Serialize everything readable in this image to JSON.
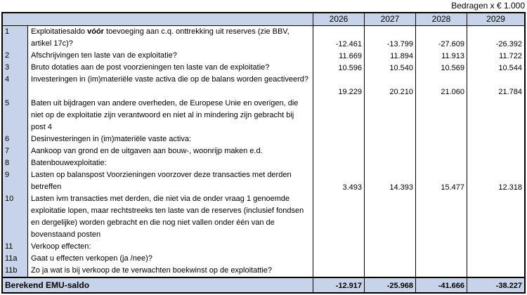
{
  "meta": {
    "amounts_note": "Bedragen x € 1.000"
  },
  "colors": {
    "header_bg": "#C6D3E8",
    "border": "#000000",
    "cell_bg": "#FFFFFF",
    "text": "#000000"
  },
  "table": {
    "year_columns": [
      "2026",
      "2027",
      "2028",
      "2029"
    ],
    "rows": [
      {
        "num": "1",
        "parts": [
          {
            "t": "Exploitatiesaldo ",
            "b": false
          },
          {
            "t": "vóór",
            "b": true
          },
          {
            "t": " toevoeging aan c.q. onttrekking uit reserves (zie BBV, artikel 17c)?",
            "b": false
          }
        ],
        "values": [
          "-12.461",
          "-13.799",
          "-27.609",
          "-26.392"
        ],
        "lines": 2
      },
      {
        "num": "2",
        "parts": [
          {
            "t": "Afschrijvingen ten laste van de exploitatie?",
            "b": false
          }
        ],
        "values": [
          "11.669",
          "11.894",
          "11.913",
          "11.722"
        ],
        "lines": 1
      },
      {
        "num": "3",
        "parts": [
          {
            "t": "Bruto dotaties aan de post voorzieningen ten laste van de exploitatie?",
            "b": false
          }
        ],
        "values": [
          "10.596",
          "10.540",
          "10.569",
          "10.544"
        ],
        "lines": 1
      },
      {
        "num": "4",
        "parts": [
          {
            "t": "Investeringen in (im)materiële vaste activa die op de balans worden geactiveerd?",
            "b": false
          }
        ],
        "values": [
          "19.229",
          "20.210",
          "21.060",
          "21.784"
        ],
        "lines": 2
      },
      {
        "num": "5",
        "parts": [
          {
            "t": "Baten uit bijdragen van andere overheden, de Europese Unie en overigen, die niet op de exploitatie zijn verantwoord en niet al in mindering zijn gebracht bij post 4",
            "b": false
          }
        ],
        "values": [
          "",
          "",
          "",
          ""
        ],
        "lines": 3
      },
      {
        "num": "6",
        "parts": [
          {
            "t": "Desinvesteringen in (im)materiële vaste activa:",
            "b": false
          }
        ],
        "values": [
          "",
          "",
          "",
          ""
        ],
        "lines": 1
      },
      {
        "num": "7",
        "parts": [
          {
            "t": "Aankoop van grond en de uitgaven aan bouw-, woonrijp maken e.d.",
            "b": false
          }
        ],
        "values": [
          "",
          "",
          "",
          ""
        ],
        "lines": 1
      },
      {
        "num": "8",
        "parts": [
          {
            "t": "Batenbouwexploitatie:",
            "b": false
          }
        ],
        "values": [
          "",
          "",
          "",
          ""
        ],
        "lines": 1
      },
      {
        "num": "9",
        "parts": [
          {
            "t": "Lasten op balanspost Voorzieningen voorzover deze transacties met derden betreffen",
            "b": false
          }
        ],
        "values": [
          "3.493",
          "14.393",
          "15.477",
          "12.318"
        ],
        "lines": 2
      },
      {
        "num": "10",
        "parts": [
          {
            "t": "Lasten ivm transacties met derden, die niet via  de onder vraag 1 genoemde exploitatie lopen, maar rechtstreeks ten laste van de reserves (inclusief fondsen en dergelijke) worden gebracht en die nog niet vallen onder één van de bovenstaand posten",
            "b": false
          }
        ],
        "values": [
          "",
          "",
          "",
          ""
        ],
        "lines": 4
      },
      {
        "num": "11",
        "parts": [
          {
            "t": "Verkoop effecten:",
            "b": false
          }
        ],
        "values": [
          "",
          "",
          "",
          ""
        ],
        "lines": 1
      },
      {
        "num": "11a",
        "parts": [
          {
            "t": "Gaat u effecten verkopen (ja /nee)?",
            "b": false
          }
        ],
        "values": [
          "",
          "",
          "",
          ""
        ],
        "lines": 1
      },
      {
        "num": "11b",
        "parts": [
          {
            "t": "Zo ja wat is bij verkoop de te verwachten boekwinst op de exploitattie?",
            "b": false
          }
        ],
        "values": [
          "",
          "",
          "",
          ""
        ],
        "lines": 1
      }
    ],
    "total_row": {
      "label": "Berekend EMU-saldo",
      "values": [
        "-12.917",
        "-25.968",
        "-41.666",
        "-38.227"
      ]
    }
  }
}
